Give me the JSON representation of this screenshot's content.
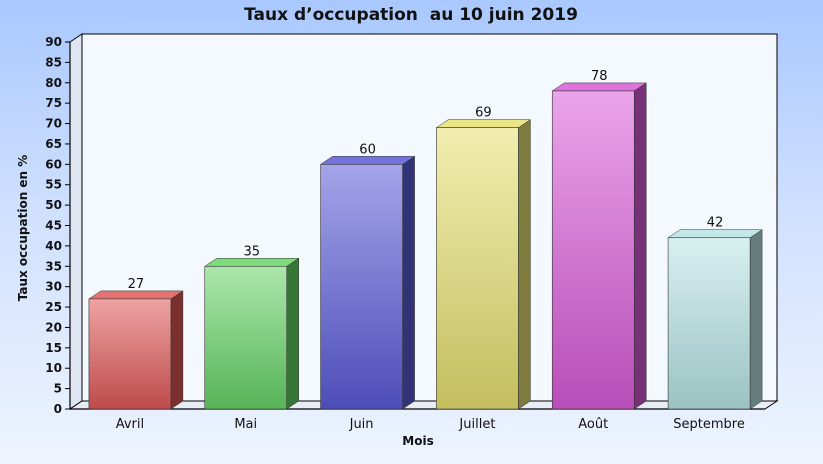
{
  "chart_data": {
    "type": "bar",
    "title": "Taux d’occupation  au 10 juin 2019",
    "xlabel": "Mois",
    "ylabel": "Taux occupation en %",
    "categories": [
      "Avril",
      "Mai",
      "Juin",
      "Juillet",
      "Août",
      "Septembre"
    ],
    "values": [
      27,
      35,
      60,
      69,
      78,
      42
    ],
    "data_labels": [
      "27",
      "35",
      "60",
      "69",
      "78",
      "42"
    ],
    "y_ticks": [
      "0",
      "5",
      "10",
      "15",
      "20",
      "25",
      "30",
      "35",
      "40",
      "45",
      "50",
      "55",
      "60",
      "65",
      "70",
      "75",
      "80",
      "85",
      "90"
    ],
    "ylim": [
      0,
      90
    ],
    "grid": false,
    "legend": "none",
    "bar_style": "3d",
    "colors": [
      "#e05858",
      "#66d466",
      "#5a5ad8",
      "#e6e070",
      "#d85ad8",
      "#b8e4e4"
    ]
  }
}
